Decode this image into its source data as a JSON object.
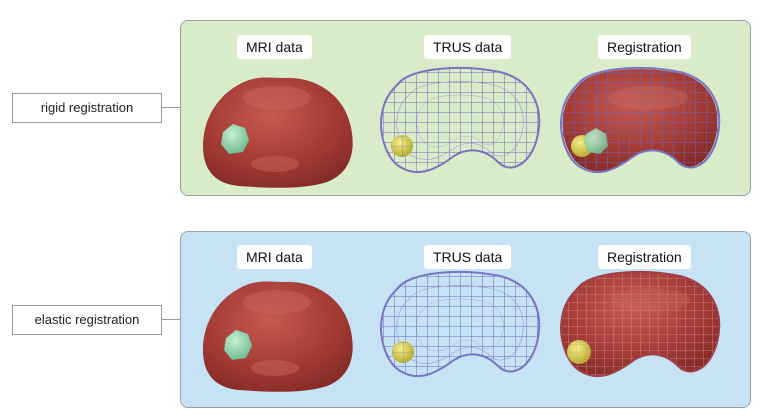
{
  "rows": [
    {
      "id": "rigid",
      "label": "rigid registration",
      "background": "#d9ecc9",
      "columns": [
        "MRI data",
        "TRUS data",
        "Registration"
      ]
    },
    {
      "id": "elastic",
      "label": "elastic registration",
      "background": "#c6e3f5",
      "columns": [
        "MRI data",
        "TRUS data",
        "Registration"
      ]
    }
  ],
  "colors": {
    "organ_surface": "#a23a34",
    "organ_highlight": "#c85a50",
    "tumor_mri": "#9ed8b4",
    "tumor_trus": "#d8d04a",
    "wireframe": "#7a74c0",
    "panel_border": "#9aa0a0"
  }
}
